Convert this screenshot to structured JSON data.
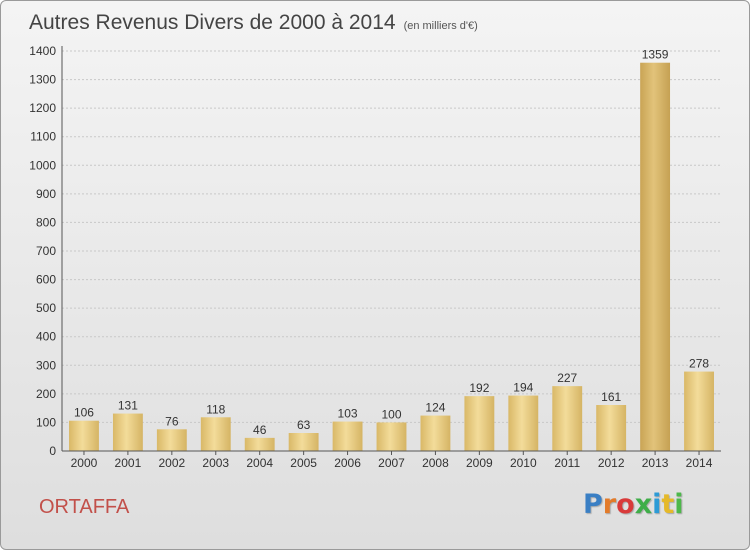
{
  "title": "Autres Revenus Divers de 2000 à 2014",
  "subtitle": "(en milliers d'€)",
  "commune": "ORTAFFA",
  "logo": {
    "letters": [
      "P",
      "r",
      "o",
      "x",
      "i",
      "t",
      "i"
    ]
  },
  "colors": {
    "bar": "#e6c77a",
    "bar_highlight": "#d4b064",
    "commune": "#c2504a"
  },
  "chart_data": {
    "type": "bar",
    "title": "Autres Revenus Divers de 2000 à 2014",
    "subtitle": "(en milliers d'€)",
    "xlabel": "",
    "ylabel": "",
    "categories": [
      "2000",
      "2001",
      "2002",
      "2003",
      "2004",
      "2005",
      "2006",
      "2007",
      "2008",
      "2009",
      "2010",
      "2011",
      "2012",
      "2013",
      "2014"
    ],
    "values": [
      106,
      131,
      76,
      118,
      46,
      63,
      103,
      100,
      124,
      192,
      194,
      227,
      161,
      1359,
      278
    ],
    "ylim": [
      0,
      1400
    ],
    "yticks": [
      0,
      100,
      200,
      300,
      400,
      500,
      600,
      700,
      800,
      900,
      1000,
      1100,
      1200,
      1300,
      1400
    ],
    "grid": true,
    "legend": "none"
  }
}
